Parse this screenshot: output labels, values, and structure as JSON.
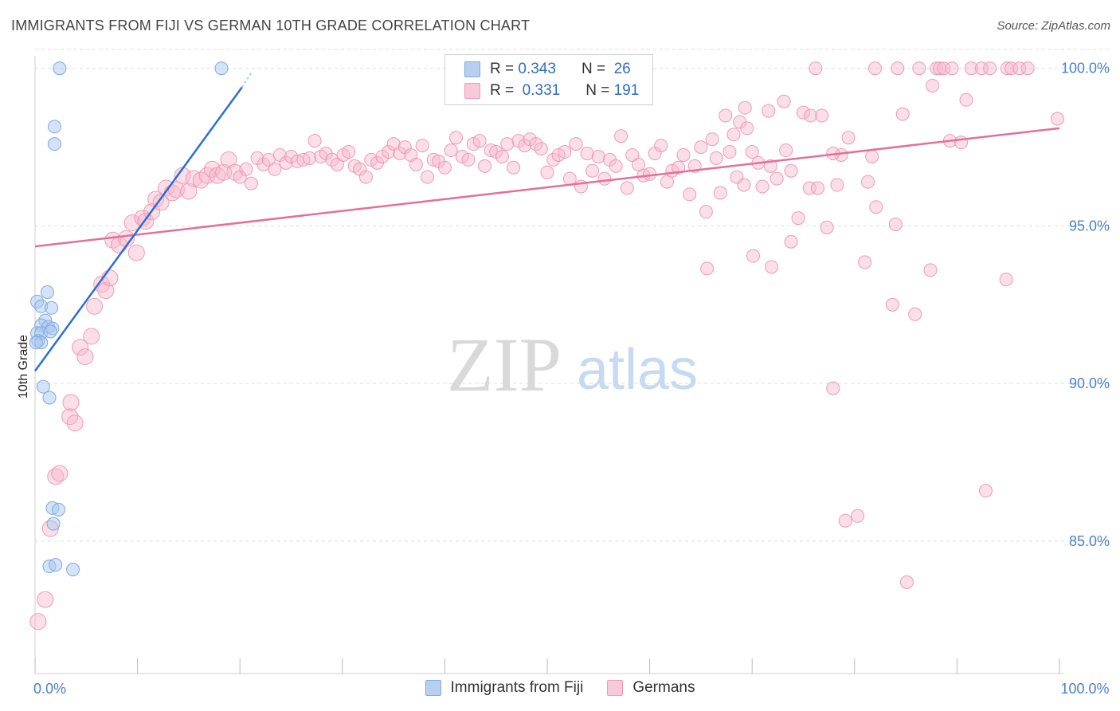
{
  "title": "IMMIGRANTS FROM FIJI VS GERMAN 10TH GRADE CORRELATION CHART",
  "source": "Source: ZipAtlas.com",
  "watermark": {
    "zip": "ZIP",
    "atlas": "atlas"
  },
  "legend": {
    "fiji": {
      "r_label": "R =",
      "r_value": "0.343",
      "n_label": "N =",
      "n_value": "26"
    },
    "germans": {
      "r_label": "R =",
      "r_value": "0.331",
      "n_label": "N =",
      "n_value": "191"
    }
  },
  "bottom_legend": {
    "fiji": "Immigrants from Fiji",
    "germans": "Germans"
  },
  "colors": {
    "fiji_fill": "#a9c8f0",
    "fiji_stroke": "#7fa9e0",
    "fiji_line": "#2b6fd1",
    "germans_fill": "#f6b8cb",
    "germans_stroke": "#ee9ab4",
    "germans_line": "#e4709a",
    "tick_text": "#4a7fd0",
    "grid": "#dddddd"
  },
  "chart_data": {
    "type": "scatter",
    "title": "IMMIGRANTS FROM FIJI VS GERMAN 10TH GRADE CORRELATION CHART",
    "xlabel": "",
    "ylabel": "10th Grade",
    "xlim": [
      0,
      100
    ],
    "ylim": [
      80.8,
      100.6
    ],
    "x_tick_labels": [
      {
        "value": 0,
        "label": "0.0%"
      },
      {
        "value": 100,
        "label": "100.0%"
      }
    ],
    "y_tick_labels": [
      {
        "value": 85,
        "label": "85.0%"
      },
      {
        "value": 90,
        "label": "90.0%"
      },
      {
        "value": 95,
        "label": "95.0%"
      },
      {
        "value": 100,
        "label": "100.0%"
      }
    ],
    "series": [
      {
        "name": "Immigrants from Fiji",
        "R": 0.343,
        "N": 26,
        "trend": {
          "x0": 0,
          "y0": 90.4,
          "x1": 20.2,
          "y1": 99.4,
          "dash_to_x": 21.2,
          "dash_to_y": 99.9
        },
        "points": [
          {
            "x": 2.4,
            "y": 100.0
          },
          {
            "x": 18.2,
            "y": 100.0
          },
          {
            "x": 1.9,
            "y": 98.15
          },
          {
            "x": 1.9,
            "y": 97.6
          },
          {
            "x": 0.2,
            "y": 92.6
          },
          {
            "x": 1.2,
            "y": 92.9
          },
          {
            "x": 0.6,
            "y": 92.45
          },
          {
            "x": 1.6,
            "y": 92.4
          },
          {
            "x": 1.0,
            "y": 92.0
          },
          {
            "x": 0.6,
            "y": 91.85
          },
          {
            "x": 1.3,
            "y": 91.8
          },
          {
            "x": 1.7,
            "y": 91.75
          },
          {
            "x": 0.2,
            "y": 91.6
          },
          {
            "x": 0.6,
            "y": 91.6
          },
          {
            "x": 1.5,
            "y": 91.65
          },
          {
            "x": 0.3,
            "y": 91.35
          },
          {
            "x": 0.6,
            "y": 91.3
          },
          {
            "x": 0.1,
            "y": 91.3
          },
          {
            "x": 0.8,
            "y": 89.9
          },
          {
            "x": 1.4,
            "y": 89.55
          },
          {
            "x": 1.7,
            "y": 86.05
          },
          {
            "x": 2.3,
            "y": 86.0
          },
          {
            "x": 1.8,
            "y": 85.55
          },
          {
            "x": 1.4,
            "y": 84.2
          },
          {
            "x": 2.0,
            "y": 84.25
          },
          {
            "x": 3.7,
            "y": 84.1
          }
        ]
      },
      {
        "name": "Germans",
        "R": 0.331,
        "N": 191,
        "trend": {
          "x0": 0,
          "y0": 94.35,
          "x1": 100,
          "y1": 98.1
        },
        "points": [
          {
            "x": 76.2,
            "y": 100
          },
          {
            "x": 82.0,
            "y": 100
          },
          {
            "x": 84.2,
            "y": 100
          },
          {
            "x": 86.3,
            "y": 100
          },
          {
            "x": 88.0,
            "y": 100
          },
          {
            "x": 88.3,
            "y": 100
          },
          {
            "x": 88.7,
            "y": 100
          },
          {
            "x": 89.5,
            "y": 100
          },
          {
            "x": 91.4,
            "y": 100
          },
          {
            "x": 92.4,
            "y": 100
          },
          {
            "x": 93.2,
            "y": 100
          },
          {
            "x": 94.9,
            "y": 100
          },
          {
            "x": 95.3,
            "y": 100
          },
          {
            "x": 96.1,
            "y": 100
          },
          {
            "x": 96.9,
            "y": 100
          },
          {
            "x": 87.6,
            "y": 99.45
          },
          {
            "x": 90.9,
            "y": 99.0
          },
          {
            "x": 73.1,
            "y": 98.95
          },
          {
            "x": 69.3,
            "y": 98.75
          },
          {
            "x": 71.6,
            "y": 98.65
          },
          {
            "x": 75.0,
            "y": 98.6
          },
          {
            "x": 75.7,
            "y": 98.5
          },
          {
            "x": 76.8,
            "y": 98.5
          },
          {
            "x": 67.4,
            "y": 98.5
          },
          {
            "x": 68.8,
            "y": 98.3
          },
          {
            "x": 84.7,
            "y": 98.55
          },
          {
            "x": 99.8,
            "y": 98.4
          },
          {
            "x": 69.5,
            "y": 98.1
          },
          {
            "x": 68.2,
            "y": 97.9
          },
          {
            "x": 66.1,
            "y": 97.75
          },
          {
            "x": 79.4,
            "y": 97.8
          },
          {
            "x": 89.3,
            "y": 97.7
          },
          {
            "x": 90.4,
            "y": 97.65
          },
          {
            "x": 73.3,
            "y": 97.4
          },
          {
            "x": 78.7,
            "y": 97.25
          },
          {
            "x": 81.7,
            "y": 97.2
          },
          {
            "x": 66.5,
            "y": 97.15
          },
          {
            "x": 71.8,
            "y": 96.9
          },
          {
            "x": 73.8,
            "y": 96.75
          },
          {
            "x": 69.2,
            "y": 96.3
          },
          {
            "x": 75.6,
            "y": 96.2
          },
          {
            "x": 81.3,
            "y": 96.4
          },
          {
            "x": 82.1,
            "y": 95.6
          },
          {
            "x": 84.0,
            "y": 95.05
          },
          {
            "x": 77.3,
            "y": 94.95
          },
          {
            "x": 74.5,
            "y": 95.25
          },
          {
            "x": 73.8,
            "y": 94.5
          },
          {
            "x": 70.1,
            "y": 94.05
          },
          {
            "x": 71.9,
            "y": 93.7
          },
          {
            "x": 65.6,
            "y": 93.65
          },
          {
            "x": 81.0,
            "y": 93.85
          },
          {
            "x": 87.4,
            "y": 93.6
          },
          {
            "x": 94.8,
            "y": 93.3
          },
          {
            "x": 83.7,
            "y": 92.5
          },
          {
            "x": 85.9,
            "y": 92.2
          },
          {
            "x": 77.9,
            "y": 89.85
          },
          {
            "x": 92.8,
            "y": 86.6
          },
          {
            "x": 79.1,
            "y": 85.65
          },
          {
            "x": 80.3,
            "y": 85.8
          },
          {
            "x": 85.1,
            "y": 83.7
          },
          {
            "x": 0.3,
            "y": 82.45
          },
          {
            "x": 1.0,
            "y": 83.15
          },
          {
            "x": 1.5,
            "y": 85.4
          },
          {
            "x": 2.0,
            "y": 87.05
          },
          {
            "x": 2.4,
            "y": 87.15
          },
          {
            "x": 3.4,
            "y": 88.95
          },
          {
            "x": 3.5,
            "y": 89.4
          },
          {
            "x": 3.9,
            "y": 88.75
          },
          {
            "x": 4.4,
            "y": 91.15
          },
          {
            "x": 4.9,
            "y": 90.85
          },
          {
            "x": 5.5,
            "y": 91.5
          },
          {
            "x": 5.8,
            "y": 92.45
          },
          {
            "x": 6.5,
            "y": 93.15
          },
          {
            "x": 6.9,
            "y": 92.95
          },
          {
            "x": 7.3,
            "y": 93.35
          },
          {
            "x": 7.6,
            "y": 94.55
          },
          {
            "x": 8.2,
            "y": 94.4
          },
          {
            "x": 8.9,
            "y": 94.6
          },
          {
            "x": 9.5,
            "y": 95.1
          },
          {
            "x": 9.9,
            "y": 94.15
          },
          {
            "x": 10.5,
            "y": 95.25
          },
          {
            "x": 10.8,
            "y": 95.15
          },
          {
            "x": 11.4,
            "y": 95.45
          },
          {
            "x": 11.8,
            "y": 95.85
          },
          {
            "x": 12.3,
            "y": 95.75
          },
          {
            "x": 12.8,
            "y": 96.2
          },
          {
            "x": 13.4,
            "y": 96.05
          },
          {
            "x": 13.8,
            "y": 96.15
          },
          {
            "x": 14.4,
            "y": 96.6
          },
          {
            "x": 15.0,
            "y": 96.1
          },
          {
            "x": 15.5,
            "y": 96.5
          },
          {
            "x": 16.2,
            "y": 96.45
          },
          {
            "x": 16.8,
            "y": 96.6
          },
          {
            "x": 17.3,
            "y": 96.8
          },
          {
            "x": 17.8,
            "y": 96.6
          },
          {
            "x": 18.4,
            "y": 96.7
          },
          {
            "x": 18.9,
            "y": 97.1
          },
          {
            "x": 19.5,
            "y": 96.7
          },
          {
            "x": 20.0,
            "y": 96.55
          },
          {
            "x": 20.6,
            "y": 96.8
          },
          {
            "x": 21.1,
            "y": 96.35
          },
          {
            "x": 21.7,
            "y": 97.15
          },
          {
            "x": 22.3,
            "y": 96.95
          },
          {
            "x": 22.8,
            "y": 97.1
          },
          {
            "x": 23.4,
            "y": 96.8
          },
          {
            "x": 23.9,
            "y": 97.25
          },
          {
            "x": 24.5,
            "y": 97.0
          },
          {
            "x": 25.0,
            "y": 97.2
          },
          {
            "x": 25.6,
            "y": 97.05
          },
          {
            "x": 26.2,
            "y": 97.1
          },
          {
            "x": 26.8,
            "y": 97.15
          },
          {
            "x": 27.3,
            "y": 97.7
          },
          {
            "x": 27.9,
            "y": 97.2
          },
          {
            "x": 28.4,
            "y": 97.3
          },
          {
            "x": 29.0,
            "y": 97.1
          },
          {
            "x": 29.5,
            "y": 96.95
          },
          {
            "x": 30.1,
            "y": 97.25
          },
          {
            "x": 30.6,
            "y": 97.35
          },
          {
            "x": 31.2,
            "y": 96.9
          },
          {
            "x": 31.7,
            "y": 96.8
          },
          {
            "x": 32.3,
            "y": 96.55
          },
          {
            "x": 32.8,
            "y": 97.1
          },
          {
            "x": 33.4,
            "y": 97.0
          },
          {
            "x": 33.9,
            "y": 97.2
          },
          {
            "x": 34.5,
            "y": 97.35
          },
          {
            "x": 35.0,
            "y": 97.6
          },
          {
            "x": 35.6,
            "y": 97.3
          },
          {
            "x": 36.1,
            "y": 97.5
          },
          {
            "x": 36.7,
            "y": 97.25
          },
          {
            "x": 37.2,
            "y": 96.95
          },
          {
            "x": 37.8,
            "y": 97.55
          },
          {
            "x": 38.3,
            "y": 96.55
          },
          {
            "x": 38.9,
            "y": 97.1
          },
          {
            "x": 39.4,
            "y": 97.05
          },
          {
            "x": 40.0,
            "y": 96.85
          },
          {
            "x": 40.6,
            "y": 97.4
          },
          {
            "x": 41.1,
            "y": 97.8
          },
          {
            "x": 41.7,
            "y": 97.2
          },
          {
            "x": 42.3,
            "y": 97.1
          },
          {
            "x": 42.8,
            "y": 97.6
          },
          {
            "x": 43.4,
            "y": 97.7
          },
          {
            "x": 43.9,
            "y": 96.9
          },
          {
            "x": 44.5,
            "y": 97.4
          },
          {
            "x": 45.0,
            "y": 97.35
          },
          {
            "x": 45.6,
            "y": 97.2
          },
          {
            "x": 46.1,
            "y": 97.6
          },
          {
            "x": 46.7,
            "y": 96.85
          },
          {
            "x": 47.2,
            "y": 97.7
          },
          {
            "x": 47.8,
            "y": 97.55
          },
          {
            "x": 48.3,
            "y": 97.75
          },
          {
            "x": 48.9,
            "y": 97.6
          },
          {
            "x": 49.4,
            "y": 97.45
          },
          {
            "x": 50.0,
            "y": 96.7
          },
          {
            "x": 50.6,
            "y": 97.1
          },
          {
            "x": 51.1,
            "y": 97.25
          },
          {
            "x": 51.7,
            "y": 97.35
          },
          {
            "x": 52.2,
            "y": 96.5
          },
          {
            "x": 52.8,
            "y": 97.6
          },
          {
            "x": 53.3,
            "y": 96.25
          },
          {
            "x": 53.9,
            "y": 97.3
          },
          {
            "x": 54.4,
            "y": 96.75
          },
          {
            "x": 55.0,
            "y": 97.2
          },
          {
            "x": 55.6,
            "y": 96.5
          },
          {
            "x": 56.1,
            "y": 97.1
          },
          {
            "x": 56.7,
            "y": 96.9
          },
          {
            "x": 57.2,
            "y": 97.85
          },
          {
            "x": 57.8,
            "y": 96.2
          },
          {
            "x": 58.3,
            "y": 97.25
          },
          {
            "x": 58.9,
            "y": 96.95
          },
          {
            "x": 59.4,
            "y": 96.6
          },
          {
            "x": 60.0,
            "y": 96.65
          },
          {
            "x": 60.5,
            "y": 97.3
          },
          {
            "x": 61.1,
            "y": 97.55
          },
          {
            "x": 61.7,
            "y": 96.4
          },
          {
            "x": 62.2,
            "y": 96.75
          },
          {
            "x": 62.8,
            "y": 96.85
          },
          {
            "x": 63.3,
            "y": 97.25
          },
          {
            "x": 63.9,
            "y": 96.0
          },
          {
            "x": 64.4,
            "y": 96.9
          },
          {
            "x": 65.0,
            "y": 97.5
          },
          {
            "x": 65.5,
            "y": 95.45
          },
          {
            "x": 66.9,
            "y": 96.05
          },
          {
            "x": 67.8,
            "y": 97.35
          },
          {
            "x": 68.5,
            "y": 96.55
          },
          {
            "x": 70.0,
            "y": 97.35
          },
          {
            "x": 71.0,
            "y": 96.25
          },
          {
            "x": 72.4,
            "y": 96.5
          },
          {
            "x": 70.6,
            "y": 97.0
          },
          {
            "x": 76.4,
            "y": 96.2
          },
          {
            "x": 77.9,
            "y": 97.3
          },
          {
            "x": 78.3,
            "y": 96.3
          }
        ]
      }
    ]
  }
}
